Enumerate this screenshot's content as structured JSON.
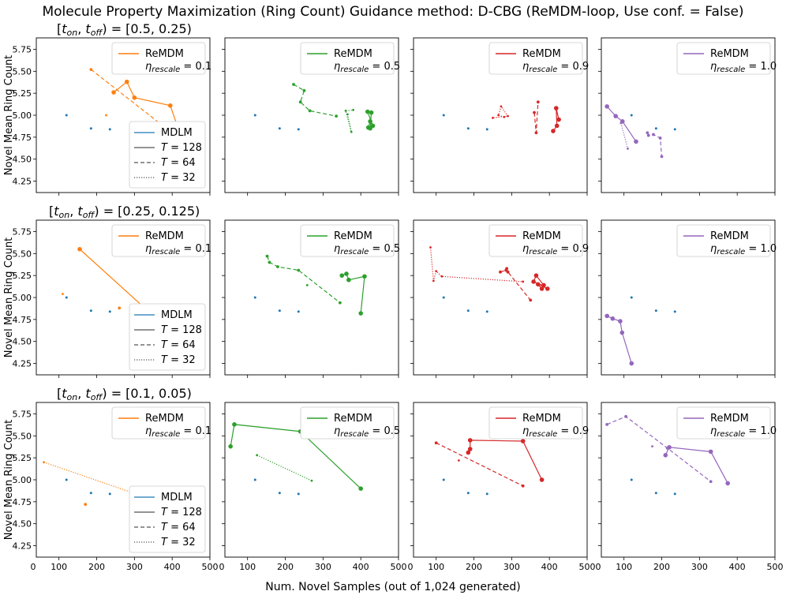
{
  "figure": {
    "title": "Molecule Property Maximization (Ring Count) Guidance method: D-CBG (ReMDM-loop, Use conf. = False)",
    "xlabel": "Num. Novel Samples (out of 1,024 generated)",
    "ylabel": "Novel Mean Ring Count",
    "row_titles": [
      "[t_on, t_off) = [0.5, 0.25)",
      "[t_on, t_off) = [0.25, 0.125)",
      "[t_on, t_off) = [0.1, 0.05)"
    ],
    "legend_series_name": "ReMDM",
    "legend_eta_prefix": "η_rescale = ",
    "baseline_legend": [
      "MDLM",
      "T = 128",
      "T = 64",
      "T = 32"
    ],
    "eta_values": [
      "0.1",
      "0.5",
      "0.9",
      "1.0"
    ],
    "colors": {
      "mdlm": "#1f77b4",
      "eta": [
        "#ff7f0e",
        "#2ca02c",
        "#d62728",
        "#9467bd"
      ]
    }
  },
  "chart_data": {
    "type": "line",
    "grid": false,
    "xlim": [
      40,
      500
    ],
    "ylim": [
      4.12,
      5.88
    ],
    "xticks": [
      0,
      100,
      200,
      300,
      400,
      500
    ],
    "yticks": [
      4.25,
      4.5,
      4.75,
      5.0,
      5.25,
      5.5,
      5.75
    ],
    "xtick_labels": [
      "0",
      "100",
      "200",
      "300",
      "400",
      "500"
    ],
    "ytick_labels": [
      "4.25",
      "4.50",
      "4.75",
      "5.00",
      "5.25",
      "5.50",
      "5.75"
    ],
    "mdlm_baseline": [
      {
        "T": 32,
        "x": 120,
        "y": 5.0
      },
      {
        "T": 64,
        "x": 185,
        "y": 4.85
      },
      {
        "T": 128,
        "x": 235,
        "y": 4.84
      }
    ],
    "panels": [
      {
        "row": 0,
        "eta": "0.1",
        "baseline_legend": true,
        "series": [
          {
            "T": 128,
            "points": [
              [
                245,
                5.26
              ],
              [
                280,
                5.38
              ],
              [
                300,
                5.2
              ],
              [
                395,
                5.11
              ],
              [
                420,
                4.8
              ]
            ]
          },
          {
            "T": 64,
            "points": [
              [
                185,
                5.52
              ],
              [
                420,
                4.73
              ]
            ]
          },
          {
            "T": 32,
            "points": [
              [
                225,
                5.0
              ]
            ]
          }
        ]
      },
      {
        "row": 0,
        "eta": "0.5",
        "baseline_legend": false,
        "series": [
          {
            "T": 128,
            "points": [
              [
                420,
                4.86
              ],
              [
                425,
                4.93
              ],
              [
                432,
                4.88
              ],
              [
                418,
                5.04
              ],
              [
                428,
                5.03
              ],
              [
                425,
                4.85
              ]
            ]
          },
          {
            "T": 64,
            "points": [
              [
                222,
                5.35
              ],
              [
                250,
                5.28
              ],
              [
                240,
                5.15
              ],
              [
                265,
                5.05
              ],
              [
                335,
                4.99
              ]
            ]
          },
          {
            "T": 32,
            "points": [
              [
                365,
                5.01
              ],
              [
                375,
                4.81
              ],
              [
                360,
                5.05
              ],
              [
                380,
                5.06
              ]
            ]
          }
        ]
      },
      {
        "row": 0,
        "eta": "0.9",
        "baseline_legend": false,
        "series": [
          {
            "T": 128,
            "points": [
              [
                410,
                4.82
              ],
              [
                420,
                4.88
              ],
              [
                418,
                5.08
              ],
              [
                425,
                4.95
              ]
            ]
          },
          {
            "T": 64,
            "points": [
              [
                360,
                5.03
              ],
              [
                365,
                4.8
              ],
              [
                370,
                5.15
              ]
            ]
          },
          {
            "T": 32,
            "points": [
              [
                280,
                4.98
              ],
              [
                265,
                5.0
              ],
              [
                272,
                5.1
              ],
              [
                290,
                4.99
              ],
              [
                250,
                4.97
              ]
            ]
          }
        ]
      },
      {
        "row": 0,
        "eta": "1.0",
        "baseline_legend": false,
        "series": [
          {
            "T": 128,
            "points": [
              [
                55,
                5.1
              ],
              [
                78,
                4.99
              ],
              [
                96,
                4.93
              ],
              [
                132,
                4.7
              ]
            ]
          },
          {
            "T": 64,
            "points": [
              [
                162,
                4.8
              ],
              [
                165,
                4.77
              ],
              [
                178,
                4.78
              ],
              [
                196,
                4.74
              ],
              [
                200,
                4.53
              ]
            ]
          },
          {
            "T": 32,
            "points": [
              [
                92,
                4.91
              ],
              [
                110,
                4.62
              ]
            ]
          }
        ]
      },
      {
        "row": 1,
        "eta": "0.1",
        "baseline_legend": true,
        "series": [
          {
            "T": 128,
            "points": [
              [
                155,
                5.55
              ],
              [
                335,
                4.85
              ]
            ]
          },
          {
            "T": 64,
            "points": [
              [
                260,
                4.88
              ]
            ]
          },
          {
            "T": 32,
            "points": [
              [
                110,
                5.04
              ]
            ]
          }
        ]
      },
      {
        "row": 1,
        "eta": "0.5",
        "baseline_legend": false,
        "series": [
          {
            "T": 128,
            "points": [
              [
                350,
                5.25
              ],
              [
                362,
                5.27
              ],
              [
                368,
                5.2
              ],
              [
                410,
                5.24
              ],
              [
                400,
                4.82
              ]
            ]
          },
          {
            "T": 64,
            "points": [
              [
                152,
                5.47
              ],
              [
                158,
                5.4
              ],
              [
                180,
                5.35
              ],
              [
                235,
                5.31
              ],
              [
                345,
                4.94
              ]
            ]
          },
          {
            "T": 32,
            "points": [
              [
                258,
                5.14
              ]
            ]
          }
        ]
      },
      {
        "row": 1,
        "eta": "0.9",
        "baseline_legend": false,
        "series": [
          {
            "T": 128,
            "points": [
              [
                380,
                5.1
              ],
              [
                370,
                5.15
              ],
              [
                385,
                5.14
              ],
              [
                365,
                5.25
              ],
              [
                358,
                5.18
              ],
              [
                395,
                5.1
              ]
            ]
          },
          {
            "T": 64,
            "points": [
              [
                270,
                5.29
              ],
              [
                285,
                5.31
              ],
              [
                287,
                5.33
              ],
              [
                290,
                5.29
              ],
              [
                350,
                4.97
              ]
            ]
          },
          {
            "T": 32,
            "points": [
              [
                85,
                5.57
              ],
              [
                93,
                5.19
              ],
              [
                100,
                5.3
              ],
              [
                115,
                5.24
              ],
              [
                330,
                5.18
              ]
            ]
          }
        ]
      },
      {
        "row": 1,
        "eta": "1.0",
        "baseline_legend": false,
        "series": [
          {
            "T": 128,
            "points": [
              [
                55,
                4.79
              ],
              [
                70,
                4.76
              ],
              [
                90,
                4.73
              ],
              [
                95,
                4.6
              ],
              [
                120,
                4.25
              ]
            ]
          },
          {
            "T": 64,
            "points": []
          },
          {
            "T": 32,
            "points": []
          }
        ]
      },
      {
        "row": 2,
        "eta": "0.1",
        "baseline_legend": true,
        "series": [
          {
            "T": 128,
            "points": []
          },
          {
            "T": 64,
            "points": [
              [
                170,
                4.72
              ]
            ]
          },
          {
            "T": 32,
            "points": [
              [
                60,
                5.2
              ],
              [
                290,
                4.86
              ]
            ]
          }
        ]
      },
      {
        "row": 2,
        "eta": "0.5",
        "baseline_legend": false,
        "series": [
          {
            "T": 128,
            "points": [
              [
                55,
                5.38
              ],
              [
                65,
                5.63
              ],
              [
                240,
                5.55
              ],
              [
                400,
                4.9
              ]
            ]
          },
          {
            "T": 64,
            "points": []
          },
          {
            "T": 32,
            "points": [
              [
                125,
                5.28
              ],
              [
                270,
                4.99
              ]
            ]
          }
        ]
      },
      {
        "row": 2,
        "eta": "0.9",
        "baseline_legend": false,
        "series": [
          {
            "T": 128,
            "points": [
              [
                185,
                5.31
              ],
              [
                190,
                5.35
              ],
              [
                190,
                5.45
              ],
              [
                330,
                5.44
              ],
              [
                380,
                5.0
              ]
            ]
          },
          {
            "T": 64,
            "points": [
              [
                100,
                5.42
              ],
              [
                330,
                4.93
              ]
            ]
          },
          {
            "T": 32,
            "points": [
              [
                160,
                5.22
              ]
            ]
          }
        ]
      },
      {
        "row": 2,
        "eta": "1.0",
        "baseline_legend": false,
        "series": [
          {
            "T": 128,
            "points": [
              [
                210,
                5.28
              ],
              [
                220,
                5.37
              ],
              [
                330,
                5.32
              ],
              [
                375,
                4.96
              ]
            ]
          },
          {
            "T": 64,
            "points": [
              [
                55,
                5.63
              ],
              [
                105,
                5.72
              ],
              [
                215,
                5.36
              ],
              [
                330,
                4.98
              ]
            ]
          },
          {
            "T": 32,
            "points": [
              [
                175,
                5.38
              ]
            ]
          }
        ]
      }
    ]
  }
}
